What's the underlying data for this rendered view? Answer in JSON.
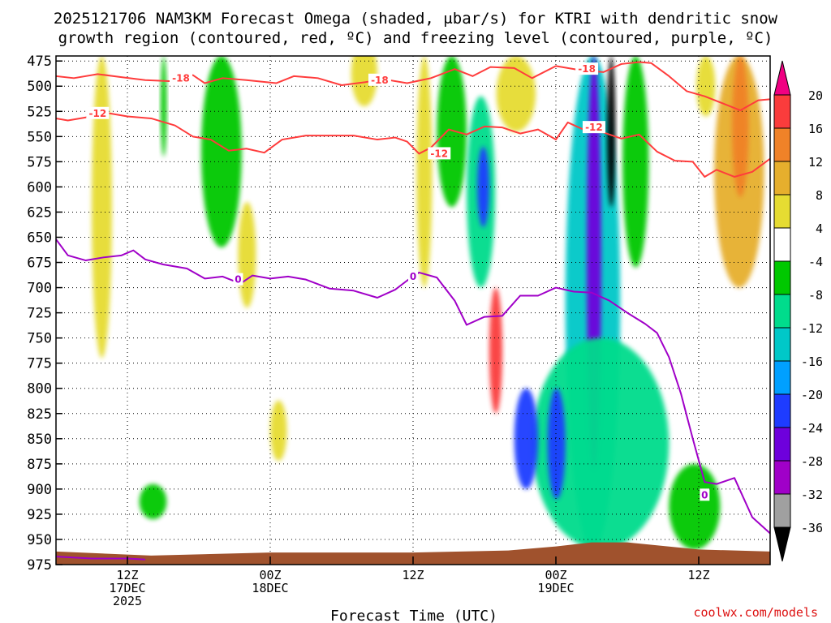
{
  "title_line1": "2025121706 NAM3KM Forecast Omega (shaded, μbar/s) for KTRI with dendritic snow",
  "title_line2": "growth region (contoured, red, ºC) and freezing level (contoured, purple, ºC)",
  "xlabel": "Forecast Time (UTC)",
  "credit": "coolwx.com/models",
  "chart_data": {
    "type": "heatmap",
    "x_axis": {
      "units": "hours since 2025-12-17 00Z",
      "range": [
        6,
        66
      ],
      "ticks": [
        {
          "x": 12,
          "lines": [
            "12Z",
            "17DEC",
            "2025"
          ]
        },
        {
          "x": 24,
          "lines": [
            "00Z",
            "18DEC"
          ]
        },
        {
          "x": 36,
          "lines": [
            "12Z"
          ]
        },
        {
          "x": 48,
          "lines": [
            "00Z",
            "19DEC"
          ]
        },
        {
          "x": 60,
          "lines": [
            "12Z"
          ]
        }
      ]
    },
    "y_axis": {
      "units": "hPa",
      "range": [
        470,
        975
      ],
      "ticks": [
        475,
        500,
        525,
        550,
        575,
        600,
        625,
        650,
        675,
        700,
        725,
        750,
        775,
        800,
        825,
        850,
        875,
        900,
        925,
        950,
        975
      ]
    },
    "grid": true,
    "colorbar": {
      "levels": [
        -36,
        -32,
        -28,
        -24,
        -20,
        -16,
        -12,
        -8,
        -4,
        4,
        8,
        12,
        16,
        20
      ],
      "labels": [
        "20",
        "16",
        "12",
        "8",
        "4",
        "-4",
        "-8",
        "-12",
        "-16",
        "-20",
        "-24",
        "-28",
        "-32",
        "-36"
      ],
      "colors": {
        "below_-36": "#000000",
        "-36_-32": "#a0a0a0",
        "-32_-28": "#a000c8",
        "-28_-24": "#6e00dc",
        "-24_-20": "#1e3cff",
        "-20_-16": "#00a0ff",
        "-16_-12": "#00c8c8",
        "-12_-8": "#00dc8c",
        "-8_-4": "#00c800",
        "-4_4": "#ffffff",
        "4_8": "#e6dc32",
        "8_12": "#e6af2d",
        "12_16": "#f08228",
        "16_20": "#fa3c3c",
        "above_20": "#f00082"
      }
    },
    "shaded_regions": [
      {
        "x": [
          9,
          10.7
        ],
        "p": [
          470,
          770
        ],
        "value": 6
      },
      {
        "x": [
          14.8,
          15.3
        ],
        "p": [
          470,
          570
        ],
        "value": -6
      },
      {
        "x": [
          18.2,
          21.6
        ],
        "p": [
          470,
          660
        ],
        "value": -7
      },
      {
        "x": [
          21.3,
          22.8
        ],
        "p": [
          615,
          720
        ],
        "value": 6
      },
      {
        "x": [
          24,
          25.4
        ],
        "p": [
          812,
          872
        ],
        "value": 6
      },
      {
        "x": [
          30.8,
          33
        ],
        "p": [
          455,
          520
        ],
        "value": 6
      },
      {
        "x": [
          36.3,
          37.6
        ],
        "p": [
          470,
          700
        ],
        "value": 5
      },
      {
        "x": [
          38,
          40.5
        ],
        "p": [
          470,
          620
        ],
        "value": -8
      },
      {
        "x": [
          40.5,
          42.9
        ],
        "p": [
          510,
          700
        ],
        "value": -10
      },
      {
        "x": [
          41.4,
          42.4
        ],
        "p": [
          560,
          640
        ],
        "value": -22
      },
      {
        "x": [
          42.4,
          43.5
        ],
        "p": [
          700,
          825
        ],
        "value": 16
      },
      {
        "x": [
          43,
          46.3
        ],
        "p": [
          470,
          545
        ],
        "value": 6
      },
      {
        "x": [
          48.8,
          53.4
        ],
        "p": [
          470,
          960
        ],
        "value": -14
      },
      {
        "x": [
          50.6,
          51.8
        ],
        "p": [
          470,
          880
        ],
        "value": -28
      },
      {
        "x": [
          52.3,
          53
        ],
        "p": [
          470,
          620
        ],
        "value": -40
      },
      {
        "x": [
          53.6,
          55.8
        ],
        "p": [
          470,
          680
        ],
        "value": -7
      },
      {
        "x": [
          59.8,
          61.4
        ],
        "p": [
          470,
          530
        ],
        "value": 5
      },
      {
        "x": [
          61.3,
          65.5
        ],
        "p": [
          470,
          700
        ],
        "value": 10
      },
      {
        "x": [
          62.8,
          64.2
        ],
        "p": [
          470,
          610
        ],
        "value": 14
      },
      {
        "x": [
          46,
          57.5
        ],
        "p": [
          750,
          960
        ],
        "value": -10
      },
      {
        "x": [
          47.3,
          48.8
        ],
        "p": [
          800,
          910
        ],
        "value": -22
      },
      {
        "x": [
          44.5,
          46.5
        ],
        "p": [
          800,
          900
        ],
        "value": -24
      },
      {
        "x": [
          57.5,
          61.8
        ],
        "p": [
          875,
          960
        ],
        "value": -7
      },
      {
        "x": [
          13,
          15.3
        ],
        "p": [
          895,
          930
        ],
        "value": -6
      }
    ],
    "terrain": {
      "color": "#a0522d",
      "x": [
        6,
        14,
        24,
        36,
        44,
        48,
        51,
        54,
        60,
        66
      ],
      "p_top": [
        962,
        966,
        963,
        963,
        961,
        957,
        953,
        953,
        960,
        962
      ]
    },
    "dgz_contours": [
      {
        "level": -18,
        "label": "-18",
        "color": "#ff3c3c",
        "x": [
          6,
          7.5,
          9.5,
          11.5,
          13.5,
          15.5,
          17.5,
          18.5,
          20,
          22,
          24.5,
          26,
          28,
          30,
          32,
          33.5,
          35.5,
          37.5,
          39.5,
          41,
          42.5,
          44.5,
          46,
          48,
          50,
          52,
          53.5,
          55,
          56,
          57.5,
          59,
          60.5,
          62,
          63.5,
          65,
          66
        ],
        "p": [
          490,
          492,
          488,
          491,
          494,
          495,
          489,
          497,
          492,
          494,
          497,
          490,
          492,
          499,
          496,
          493,
          497,
          492,
          483,
          490,
          481,
          482,
          492,
          480,
          484,
          486,
          478,
          476,
          477,
          490,
          505,
          510,
          517,
          524,
          514,
          513
        ]
      },
      {
        "level": -12,
        "label": "-12",
        "color": "#ff3c3c",
        "x": [
          6,
          7,
          8.5,
          10,
          12,
          14,
          16,
          17.5,
          19,
          20.5,
          22,
          23.5,
          25,
          27,
          29,
          31,
          33,
          34.5,
          35.5,
          36.5,
          37.5,
          39,
          40.5,
          42,
          43.5,
          45,
          46.5,
          48,
          49,
          50.5,
          52,
          53.5,
          55,
          56.5,
          58,
          59.5,
          60.5,
          61.5,
          63,
          64.5,
          66
        ],
        "p": [
          532,
          534,
          531,
          526,
          530,
          532,
          539,
          550,
          553,
          564,
          562,
          566,
          553,
          549,
          549,
          549,
          553,
          551,
          555,
          567,
          561,
          543,
          548,
          540,
          541,
          547,
          543,
          553,
          536,
          544,
          546,
          552,
          548,
          565,
          574,
          575,
          590,
          583,
          590,
          585,
          572
        ]
      },
      {
        "level": 0,
        "label": "0",
        "color": "#a000c8",
        "x": [
          6,
          7,
          8.5,
          10,
          11.5,
          12.5,
          13.5,
          15,
          17,
          18.5,
          20,
          21.5,
          22.5,
          24,
          25.5,
          27,
          29,
          31,
          33,
          34.5,
          35.5,
          36.5,
          38,
          39.5,
          40.5,
          42,
          43.5,
          45,
          46.5,
          48,
          49.5,
          51,
          52.5,
          54,
          55.5,
          56.5,
          57.5,
          58.5,
          59.5,
          60.5,
          61.5,
          63,
          64.5,
          66
        ],
        "p": [
          652,
          668,
          673,
          670,
          668,
          663,
          672,
          677,
          681,
          691,
          689,
          696,
          688,
          691,
          689,
          692,
          701,
          703,
          710,
          702,
          693,
          685,
          690,
          713,
          737,
          729,
          728,
          708,
          708,
          700,
          704,
          705,
          713,
          725,
          736,
          745,
          769,
          805,
          850,
          893,
          895,
          889,
          928,
          944
        ]
      },
      {
        "level": 0,
        "label": "",
        "color": "#a000c8",
        "x": [
          6,
          9,
          12,
          13.5
        ],
        "p": [
          967,
          969,
          969,
          970
        ]
      }
    ],
    "contour_labels": [
      {
        "text": "-18",
        "x": 16.5,
        "p": 492,
        "color": "#ff3c3c"
      },
      {
        "text": "-18",
        "x": 33.2,
        "p": 494,
        "color": "#ff3c3c"
      },
      {
        "text": "-18",
        "x": 50.6,
        "p": 483,
        "color": "#ff3c3c"
      },
      {
        "text": "-12",
        "x": 9.5,
        "p": 527,
        "color": "#ff3c3c"
      },
      {
        "text": "-12",
        "x": 38.2,
        "p": 567,
        "color": "#ff3c3c"
      },
      {
        "text": "-12",
        "x": 51.2,
        "p": 541,
        "color": "#ff3c3c"
      },
      {
        "text": "0",
        "x": 21.3,
        "p": 692,
        "color": "#a000c8"
      },
      {
        "text": "0",
        "x": 36,
        "p": 689,
        "color": "#a000c8"
      },
      {
        "text": "0",
        "x": 60.5,
        "p": 906,
        "color": "#a000c8"
      }
    ]
  }
}
